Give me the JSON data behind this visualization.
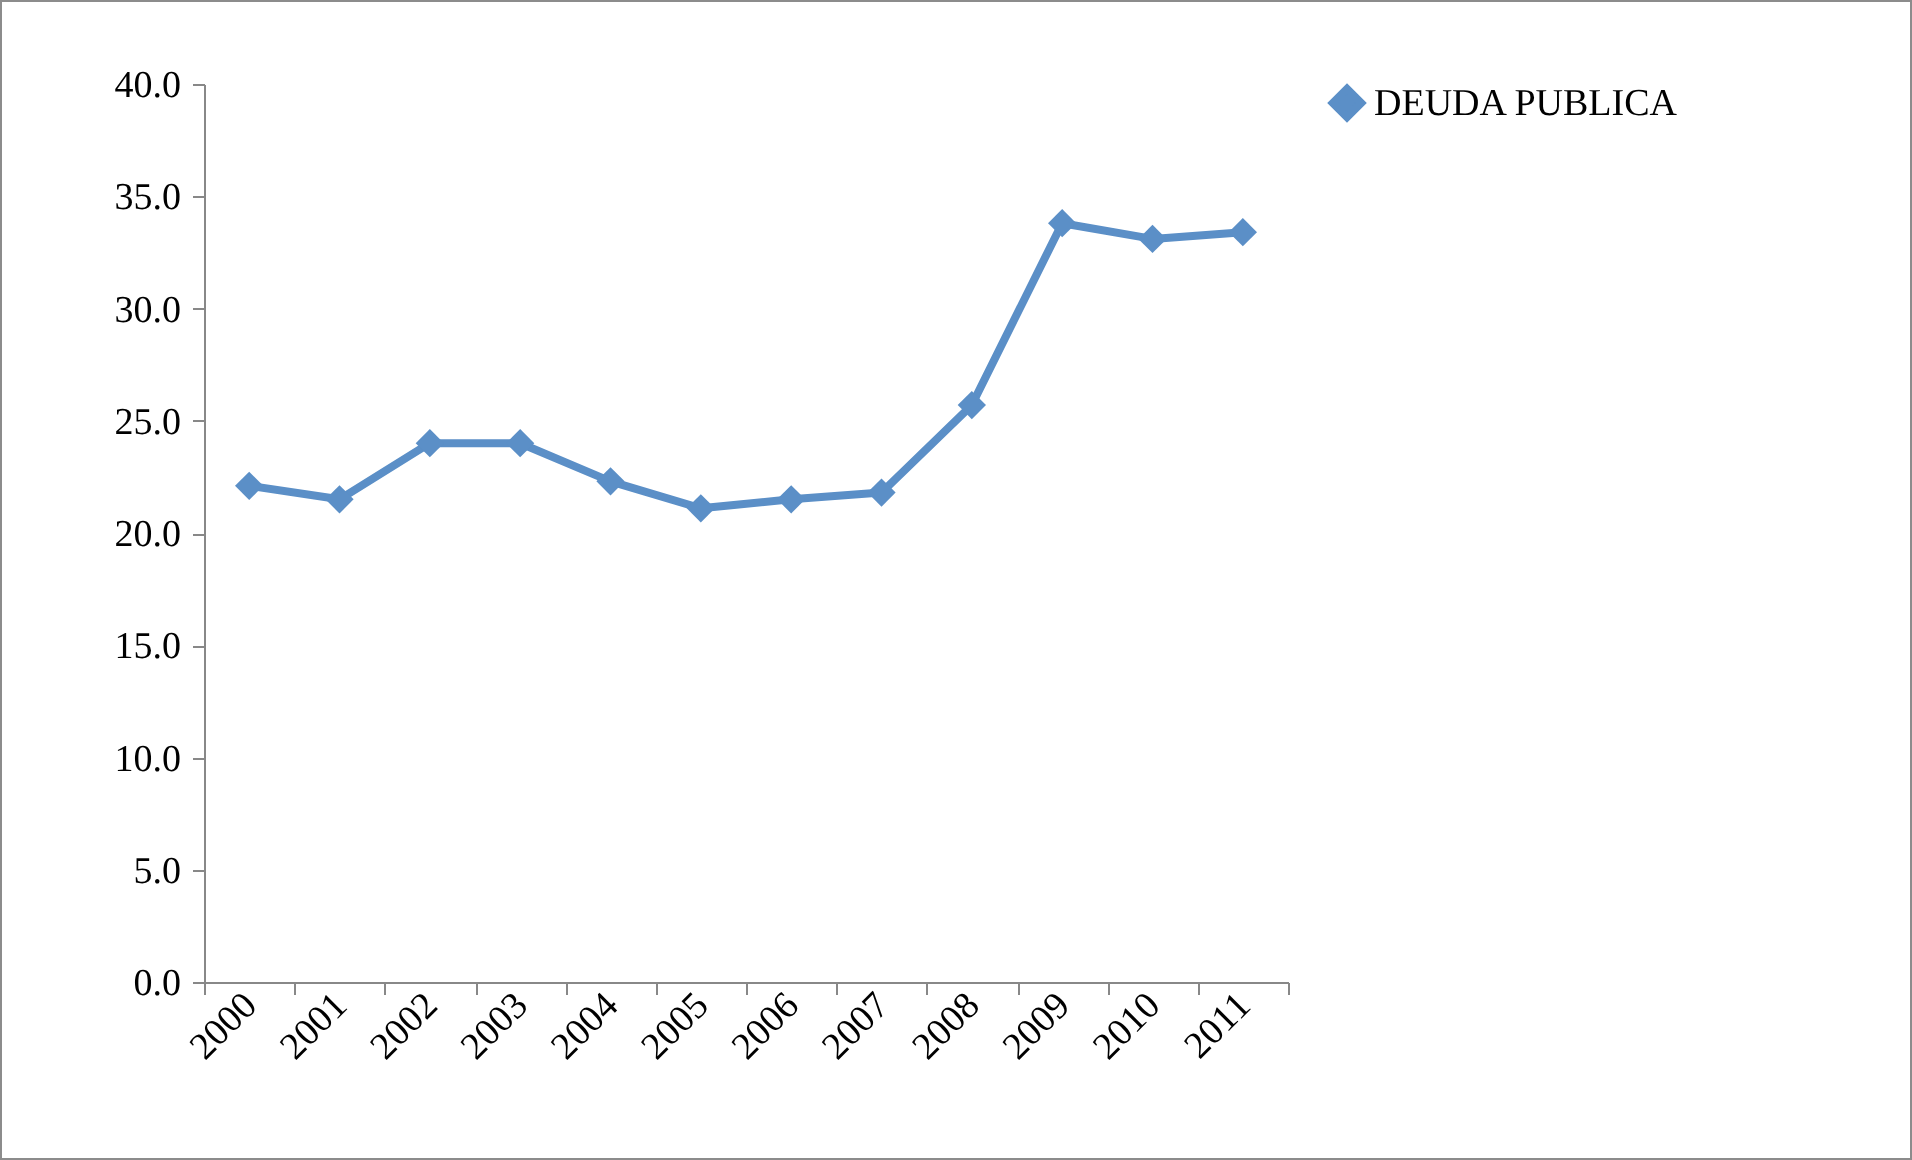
{
  "chart_data": {
    "type": "line",
    "categories": [
      "2000",
      "2001",
      "2002",
      "2003",
      "2004",
      "2005",
      "2006",
      "2007",
      "2008",
      "2009",
      "2010",
      "2011"
    ],
    "series": [
      {
        "name": "DEUDA PUBLICA",
        "color": "#5b8fc7",
        "values": [
          22.1,
          21.5,
          24.0,
          24.0,
          22.3,
          21.1,
          21.5,
          21.8,
          25.7,
          33.8,
          33.1,
          33.4
        ]
      }
    ],
    "ylim": [
      0,
      40
    ],
    "yticks": [
      {
        "value": 0,
        "label": "0.0"
      },
      {
        "value": 5,
        "label": "5.0"
      },
      {
        "value": 10,
        "label": "10.0"
      },
      {
        "value": 15,
        "label": "15.0"
      },
      {
        "value": 20,
        "label": "20.0"
      },
      {
        "value": 25,
        "label": "25.0"
      },
      {
        "value": 30,
        "label": "30.0"
      },
      {
        "value": 35,
        "label": "35.0"
      },
      {
        "value": 40,
        "label": "40.0"
      }
    ],
    "grid": false,
    "legend": "right",
    "marker": "diamond",
    "line_style": "solid"
  }
}
